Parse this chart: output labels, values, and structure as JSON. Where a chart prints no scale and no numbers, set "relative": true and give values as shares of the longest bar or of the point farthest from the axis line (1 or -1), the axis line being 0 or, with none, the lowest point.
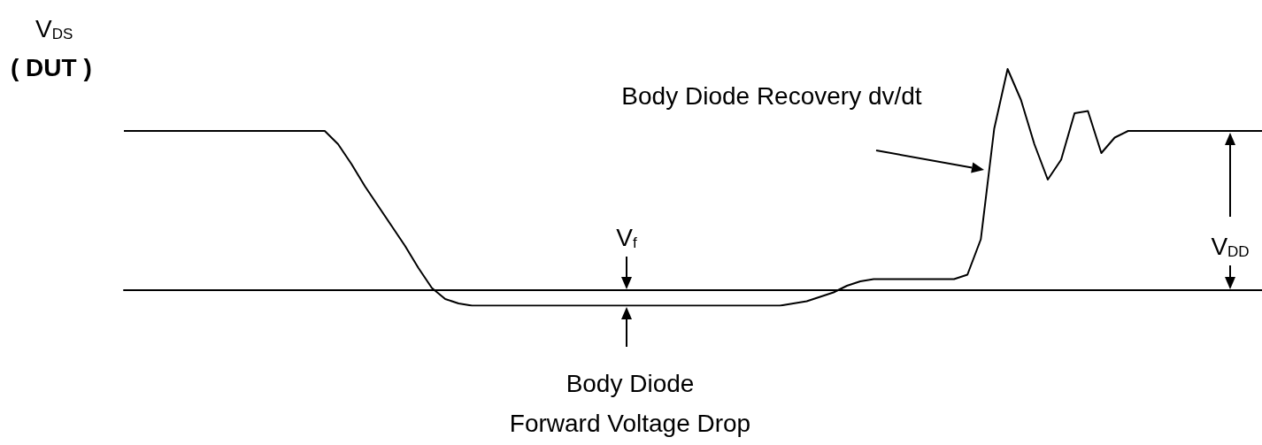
{
  "chart_data": {
    "type": "line",
    "relative": true,
    "ylabel": "V$_{DS}$ ( DUT )",
    "annotations": [
      "Body Diode Recovery dv/dt",
      "V$_{f}$",
      "Body Diode",
      "Forward Voltage Drop",
      "V$_{DD}$"
    ],
    "categories": [
      null,
      null,
      null,
      null,
      null,
      null,
      null,
      null,
      null,
      null,
      null,
      null,
      null,
      null,
      null,
      null,
      null,
      null,
      null,
      null,
      null,
      null,
      null,
      null,
      null,
      null,
      null,
      null,
      null,
      null,
      null,
      null,
      null,
      null,
      null,
      null,
      null,
      null,
      null,
      null,
      null,
      null,
      null,
      null,
      null,
      null,
      null,
      null,
      null,
      null,
      null,
      null,
      null,
      null,
      null,
      null,
      null,
      null,
      null,
      null,
      null,
      null,
      null,
      null,
      null,
      null,
      null,
      null,
      null,
      null,
      null,
      null,
      null,
      null,
      null,
      null,
      null,
      null,
      null,
      null,
      null,
      null,
      null,
      null,
      null,
      null
    ],
    "series": [
      {
        "color": "#000000",
        "values": [
          0.72,
          0.72,
          0.72,
          0.72,
          0.72,
          0.72,
          0.72,
          0.72,
          0.72,
          0.72,
          0.72,
          0.72,
          0.72,
          0.72,
          0.72,
          0.72,
          0.66,
          0.57,
          0.47,
          0.38,
          0.29,
          0.2,
          0.1,
          0.01,
          -0.04,
          -0.06,
          -0.07,
          -0.07,
          -0.07,
          -0.07,
          -0.07,
          -0.07,
          -0.07,
          -0.07,
          -0.07,
          -0.07,
          -0.07,
          -0.07,
          -0.07,
          -0.07,
          -0.07,
          -0.07,
          -0.07,
          -0.07,
          -0.07,
          -0.07,
          -0.07,
          -0.07,
          -0.07,
          -0.07,
          -0.06,
          -0.05,
          -0.03,
          -0.01,
          0.02,
          0.04,
          0.05,
          0.05,
          0.05,
          0.05,
          0.05,
          0.05,
          0.05,
          0.07,
          0.23,
          0.73,
          1,
          0.86,
          0.66,
          0.5,
          0.59,
          0.8,
          0.81,
          0.62,
          0.69,
          0.72,
          0.72,
          0.72,
          0.72,
          0.72,
          0.72,
          0.72,
          0.72,
          0.72,
          0.72,
          0.72
        ]
      }
    ]
  }
}
